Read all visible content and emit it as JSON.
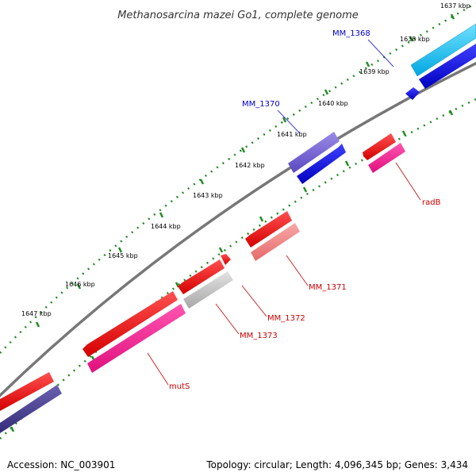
{
  "title": "Methanosarcina mazei Go1, complete genome",
  "accession": "Accession: NC_003901",
  "summary": "Topology: circular; Length: 4,096,345 bp; Genes: 3,434",
  "colors": {
    "backbone": "#808080",
    "tick": "#228B22",
    "blue_label": "#0000CC",
    "red_label": "#CC0000",
    "red": "#FF0000",
    "pink": "#FF1493",
    "light_red": "#F08080",
    "gray": "#C0C0C0",
    "purple": "#6A5ACD",
    "dark_purple": "#483D8B",
    "blue": "#0000FF",
    "cyan": "#00BFFF"
  },
  "ticks": [
    "1637 kbp",
    "1638 kbp",
    "1639 kbp",
    "1640 kbp",
    "1641 kbp",
    "1642 kbp",
    "1643 kbp",
    "1644 kbp",
    "1645 kbp",
    "1646 kbp",
    "1647 kbp"
  ],
  "genes": [
    {
      "label": "MM_1368",
      "label_color": "blue_label"
    },
    {
      "label": "MM_1370",
      "label_color": "blue_label"
    },
    {
      "label": "radB",
      "label_color": "red_label"
    },
    {
      "label": "MM_1371",
      "label_color": "red_label"
    },
    {
      "label": "MM_1372",
      "label_color": "red_label"
    },
    {
      "label": "MM_1373",
      "label_color": "red_label"
    },
    {
      "label": "mutS",
      "label_color": "red_label"
    }
  ]
}
